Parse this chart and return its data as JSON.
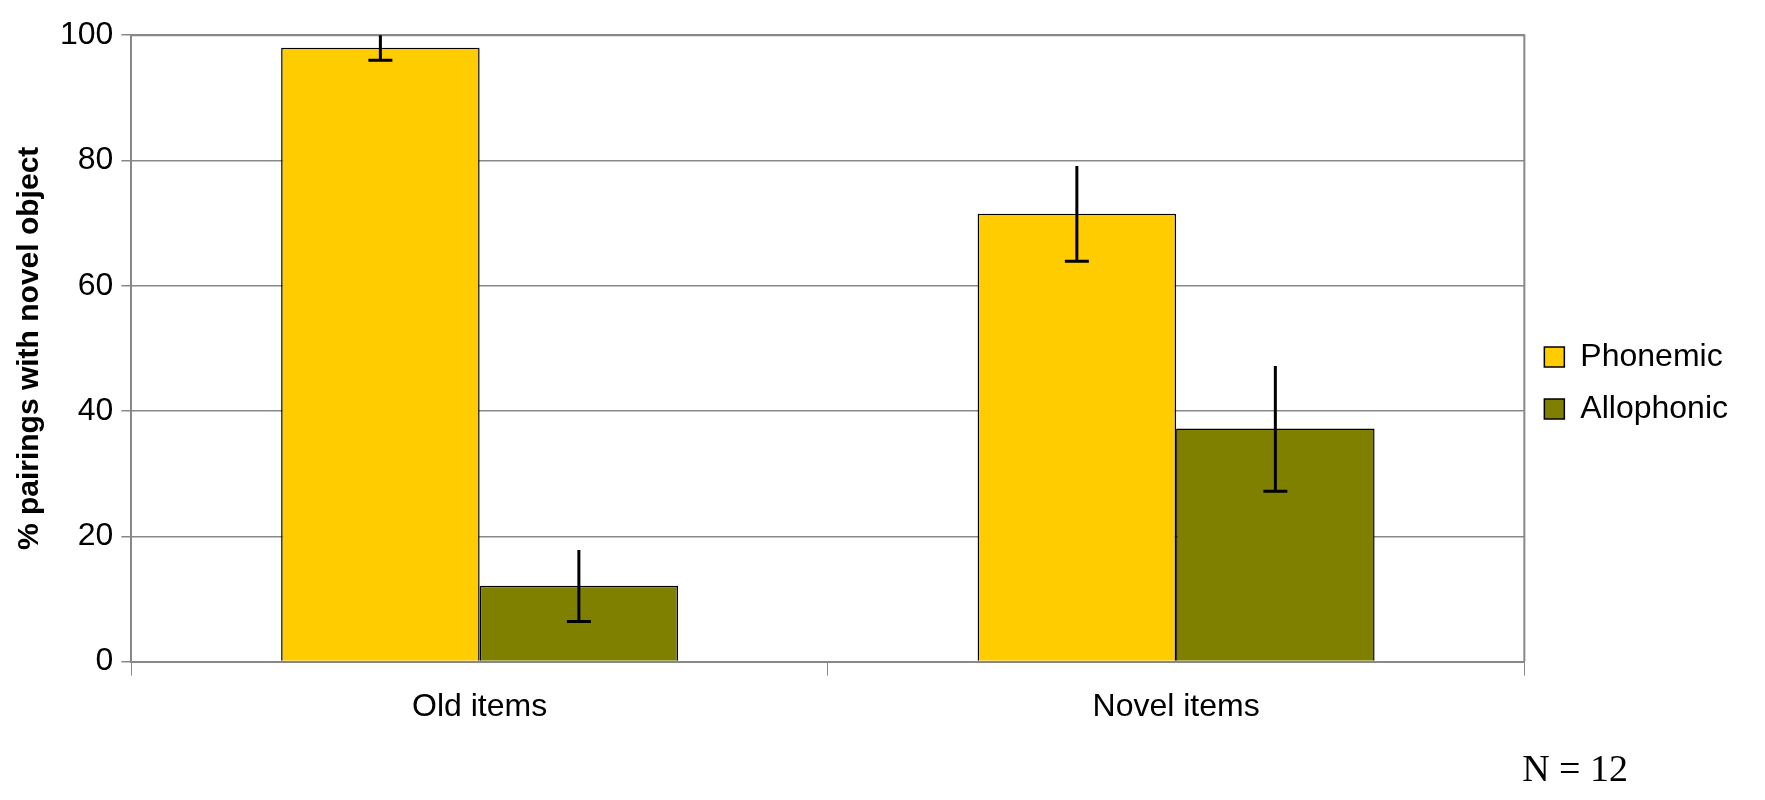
{
  "chart_data": {
    "type": "bar",
    "ylabel": "% pairings with novel object",
    "categories": [
      "Old items",
      "Novel items"
    ],
    "series": [
      {
        "name": "Phonemic",
        "color": "#ffcc00",
        "values": [
          98,
          71.5
        ],
        "errors": [
          2,
          7.6
        ]
      },
      {
        "name": "Allophonic",
        "color": "#808000",
        "values": [
          12.1,
          37.2
        ],
        "errors": [
          5.7,
          10
        ]
      }
    ],
    "ylim": [
      0,
      100
    ],
    "yticks": [
      0,
      20,
      40,
      60,
      80,
      100
    ],
    "grid": "y",
    "legend": "right",
    "annotations": [
      "N = 12"
    ]
  }
}
